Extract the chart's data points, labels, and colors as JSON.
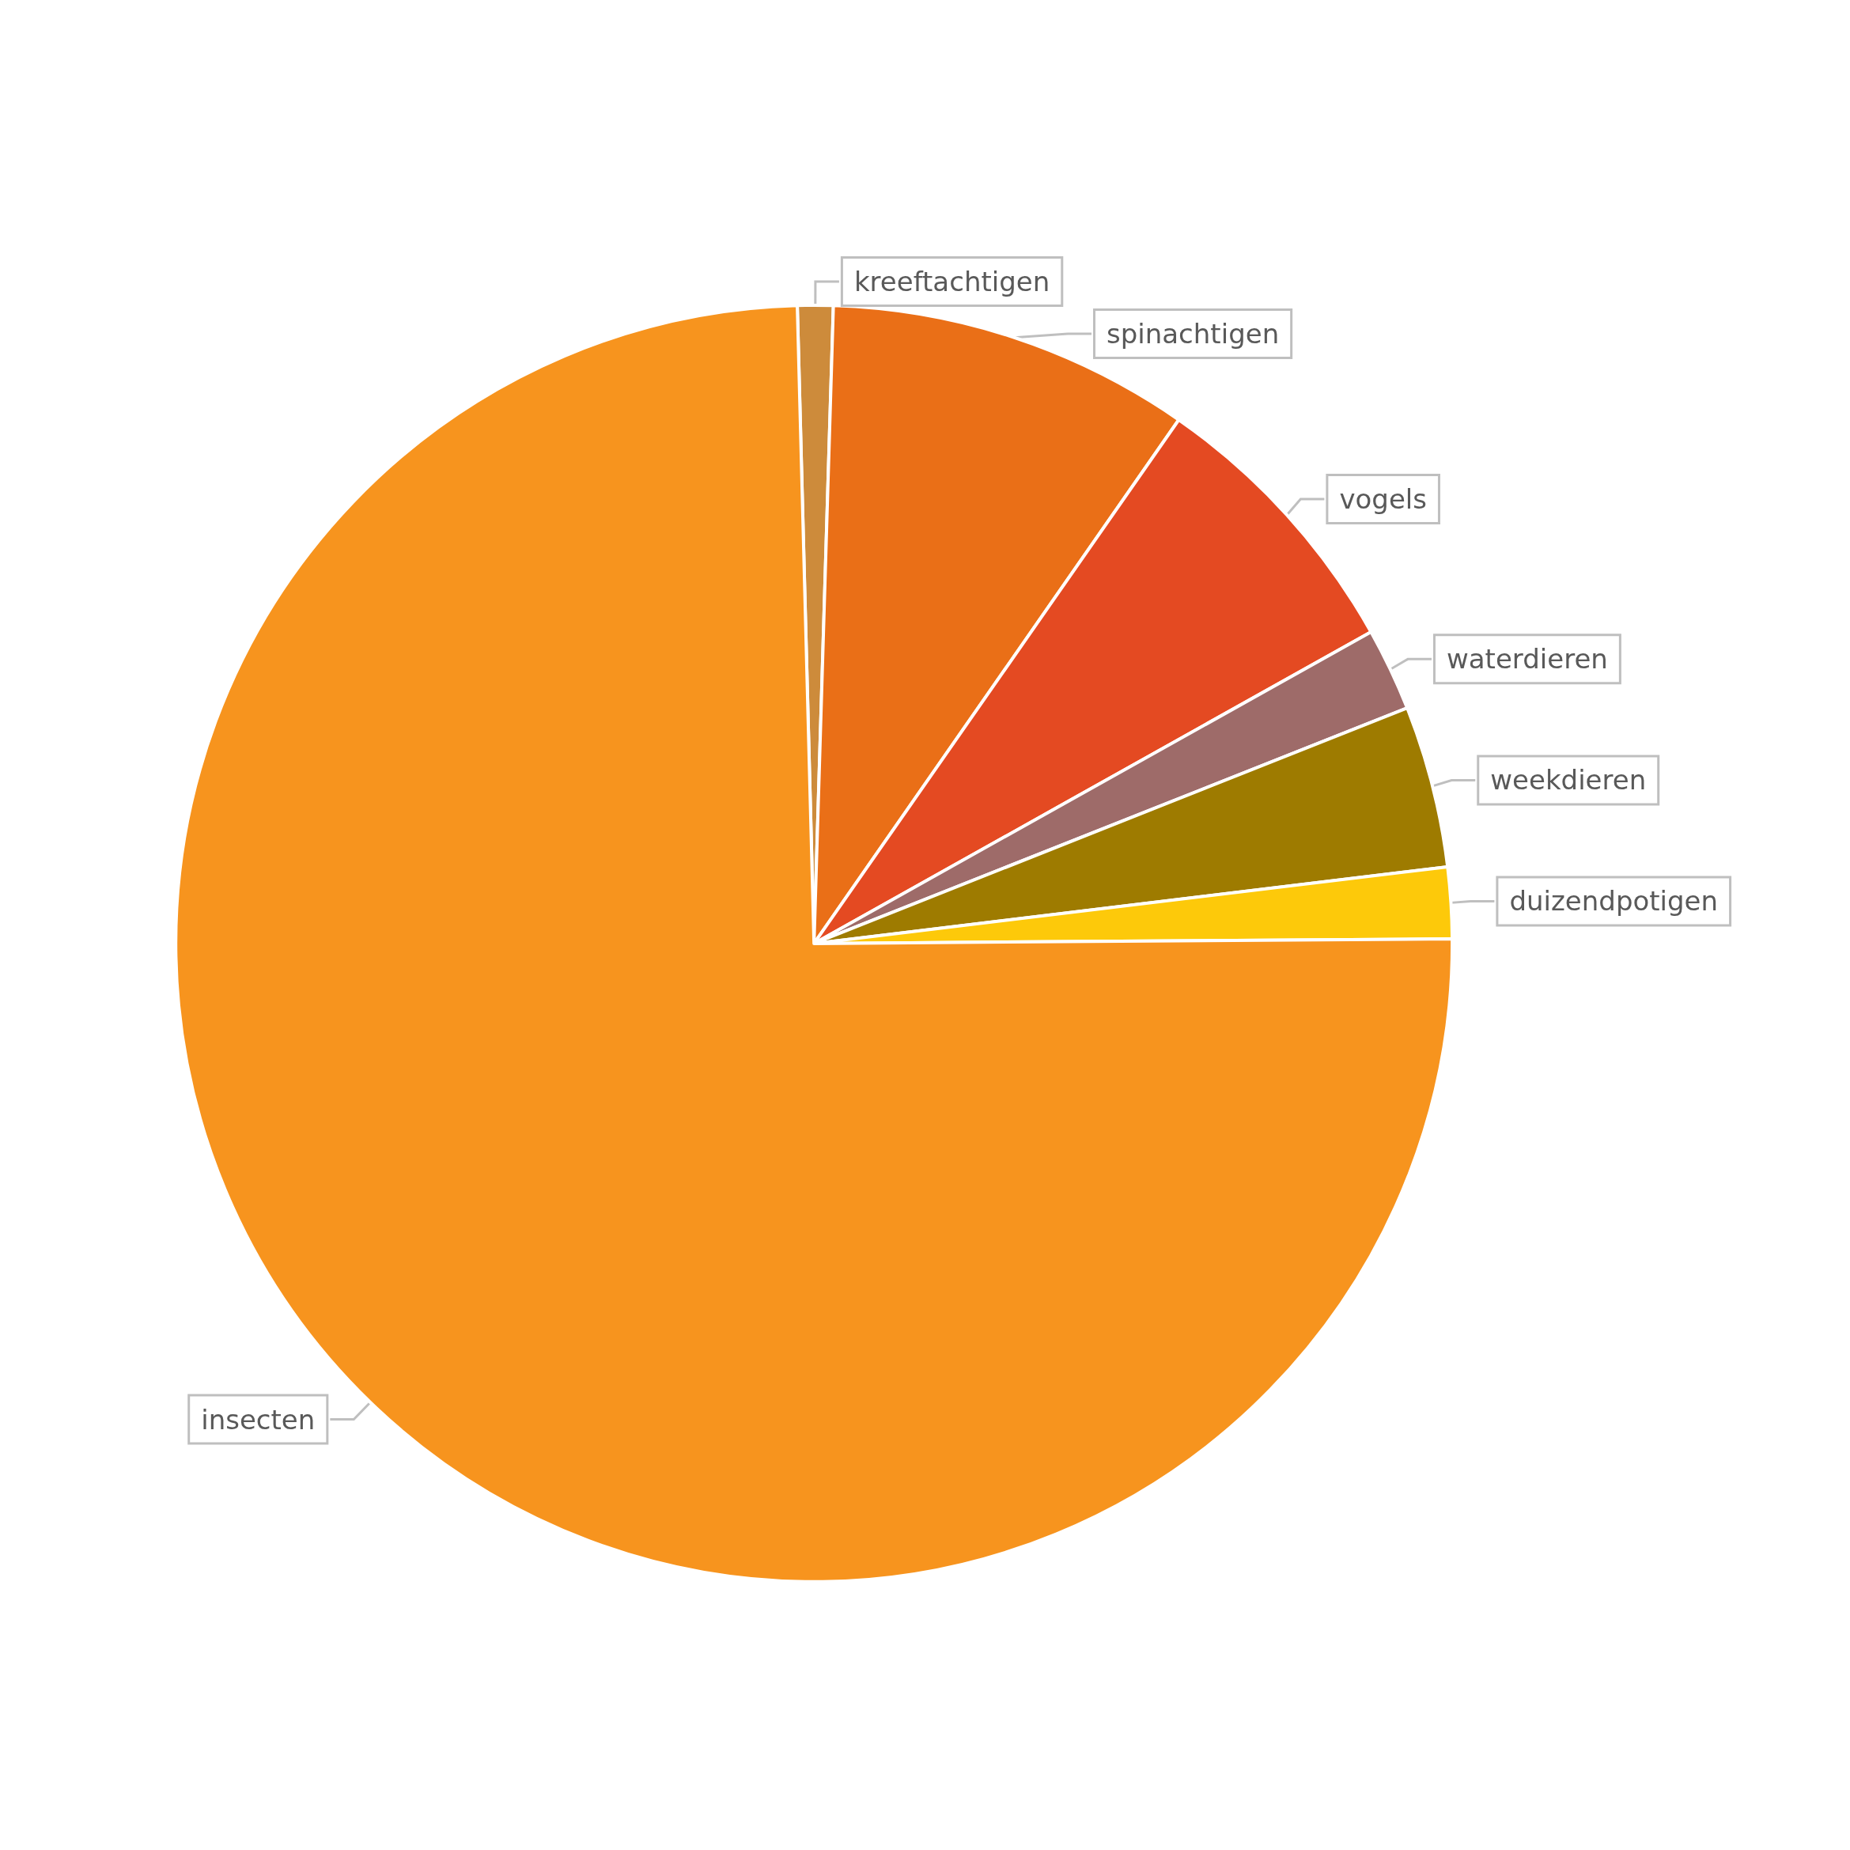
{
  "chart_data": {
    "type": "pie",
    "categories": [
      "kreeftachtigen",
      "spinachtigen",
      "vogels",
      "waterdieren",
      "weekdieren",
      "duizendpotigen",
      "insecten"
    ],
    "values": [
      0.9,
      9.2,
      7.2,
      2.1,
      4.1,
      1.8,
      74.7
    ],
    "colors": [
      "#cd8b3b",
      "#ea6f17",
      "#e44a22",
      "#9e6b69",
      "#9e7b00",
      "#fdc90a",
      "#f7941e"
    ]
  }
}
